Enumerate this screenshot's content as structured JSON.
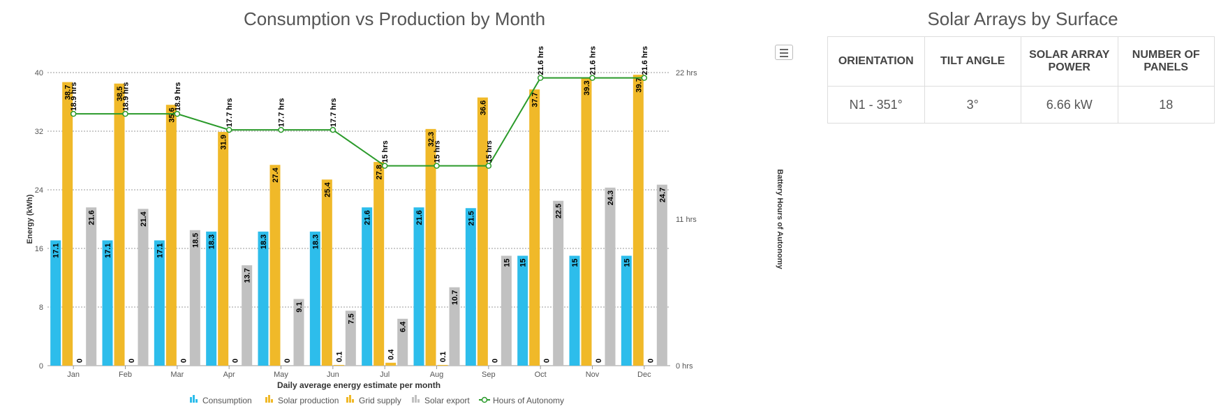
{
  "chart": {
    "title": "Consumption vs Production by Month"
  },
  "chart_data": {
    "type": "bar",
    "title": "Consumption vs Production by Month",
    "xlabel": "Daily average energy estimate per month",
    "ylabel": "Energy (kWh)",
    "ylabel_right": "Battery Hours of Autonomy",
    "ylim": [
      0,
      40
    ],
    "yticks": [
      "0",
      "8",
      "16",
      "24",
      "32",
      "40"
    ],
    "ylim_right": [
      0,
      22
    ],
    "yticks_right": [
      "0 hrs",
      "11 hrs",
      "22 hrs"
    ],
    "categories": [
      "Jan",
      "Feb",
      "Mar",
      "Apr",
      "May",
      "Jun",
      "Jul",
      "Aug",
      "Sep",
      "Oct",
      "Nov",
      "Dec"
    ],
    "series": [
      {
        "name": "Consumption",
        "kind": "bar",
        "color": "#2dbdeb",
        "values": [
          17.1,
          17.1,
          17.1,
          18.3,
          18.3,
          18.3,
          21.6,
          21.6,
          21.5,
          15,
          15,
          15
        ],
        "labels": [
          "17.1",
          "17.1",
          "17.1",
          "18.3",
          "18.3",
          "18.3",
          "21.6",
          "21.6",
          "21.5",
          "15",
          "15",
          "15"
        ]
      },
      {
        "name": "Solar production",
        "kind": "bar",
        "color": "#f0b929",
        "values": [
          38.7,
          38.5,
          35.6,
          31.9,
          27.4,
          25.4,
          27.8,
          32.3,
          36.6,
          37.7,
          39.3,
          39.7
        ],
        "labels": [
          "38.7",
          "38.5",
          "35.6",
          "31.9",
          "27.4",
          "25.4",
          "27.8",
          "32.3",
          "36.6",
          "37.7",
          "39.3",
          "39.7"
        ]
      },
      {
        "name": "Grid supply",
        "kind": "bar",
        "color": "#f0b929",
        "values": [
          0,
          0,
          0,
          0,
          0,
          0.1,
          0.4,
          0.1,
          0,
          0,
          0,
          0
        ],
        "labels": [
          "0",
          "0",
          "0",
          "0",
          "0",
          "0.1",
          "0.4",
          "0.1",
          "0",
          "0",
          "0",
          "0"
        ]
      },
      {
        "name": "Solar export",
        "kind": "bar",
        "color": "#c1c1c1",
        "values": [
          21.6,
          21.4,
          18.5,
          13.7,
          9.1,
          7.5,
          6.4,
          10.7,
          15,
          22.5,
          24.3,
          24.7
        ],
        "labels": [
          "21.6",
          "21.4",
          "18.5",
          "13.7",
          "9.1",
          "7.5",
          "6.4",
          "10.7",
          "15",
          "22.5",
          "24.3",
          "24.7"
        ]
      },
      {
        "name": "Hours of Autonomy",
        "kind": "line",
        "axis": "right",
        "color": "#2a9a2a",
        "values": [
          18.9,
          18.9,
          18.9,
          17.7,
          17.7,
          17.7,
          15,
          15,
          15,
          21.6,
          21.6,
          21.6
        ],
        "labels": [
          "18.9 hrs",
          "18.9 hrs",
          "18.9 hrs",
          "17.7 hrs",
          "17.7 hrs",
          "17.7 hrs",
          "15 hrs",
          "15 hrs",
          "15 hrs",
          "21.6 hrs",
          "21.6 hrs",
          "21.6 hrs"
        ]
      }
    ],
    "grid": true,
    "legend_position": "bottom-center"
  },
  "table": {
    "title": "Solar Arrays by Surface",
    "headers": [
      "ORIENTATION",
      "TILT ANGLE",
      "SOLAR ARRAY POWER",
      "NUMBER OF PANELS"
    ],
    "rows": [
      [
        "N1 - 351°",
        "3°",
        "6.66 kW",
        "18"
      ]
    ]
  },
  "icons": {
    "menu": "hamburger-menu-icon"
  }
}
